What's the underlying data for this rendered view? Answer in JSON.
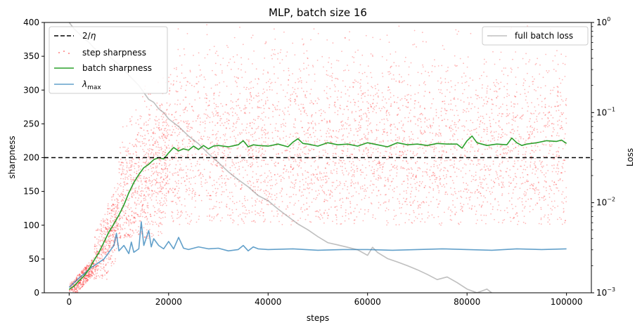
{
  "chart_data": {
    "type": "line+scatter",
    "title": "MLP, batch size 16",
    "xlabel": "steps",
    "ylabel": "sharpness",
    "y2label": "Loss",
    "xlim": [
      -5000,
      105000
    ],
    "ylim": [
      0,
      400
    ],
    "y2lim": [
      0.001,
      1
    ],
    "y2scale": "log",
    "xticks": [
      0,
      20000,
      40000,
      60000,
      80000,
      100000
    ],
    "xtick_labels": [
      "0",
      "20000",
      "40000",
      "60000",
      "80000",
      "100000"
    ],
    "yticks": [
      0,
      50,
      100,
      150,
      200,
      250,
      300,
      350,
      400
    ],
    "ytick_labels": [
      "0",
      "50",
      "100",
      "150",
      "200",
      "250",
      "300",
      "350",
      "400"
    ],
    "y2ticks": [
      0.001,
      0.01,
      0.1,
      1
    ],
    "y2tick_labels": [
      "10",
      "10",
      "10",
      "10"
    ],
    "y2tick_exponents": [
      "−3",
      "−2",
      "−1",
      "0"
    ],
    "threshold": {
      "name": "2/η",
      "value": 200,
      "color": "#000000"
    },
    "legend_left": {
      "placement": "top-left",
      "entries": [
        {
          "label_base": "2/",
          "label_sym": "η",
          "style": "dashed-line",
          "color": "#000000"
        },
        {
          "label": "step sharpness",
          "style": "dots",
          "color": "#ff0000"
        },
        {
          "label": "batch sharpness",
          "style": "line",
          "color": "#2ca02c"
        },
        {
          "label_base": "λ",
          "label_sub": "max",
          "style": "line",
          "color": "#1f77b4"
        }
      ]
    },
    "legend_right": {
      "placement": "top-right",
      "entries": [
        {
          "label": "full batch loss",
          "style": "line",
          "color": "#808080"
        }
      ]
    },
    "series": [
      {
        "name": "batch sharpness",
        "axis": "left",
        "color": "#2ca02c",
        "x": [
          0,
          1000,
          2000,
          3000,
          4000,
          5000,
          6000,
          7000,
          8000,
          9000,
          10000,
          11000,
          12000,
          13000,
          14000,
          15000,
          16000,
          17000,
          18000,
          19000,
          20000,
          21000,
          22000,
          23000,
          24000,
          25000,
          26000,
          27000,
          28000,
          29000,
          30000,
          32000,
          34000,
          35000,
          36000,
          37000,
          38000,
          40000,
          42000,
          44000,
          45000,
          46000,
          47000,
          48000,
          50000,
          52000,
          54000,
          56000,
          58000,
          60000,
          62000,
          64000,
          66000,
          68000,
          70000,
          72000,
          74000,
          76000,
          78000,
          79000,
          80000,
          81000,
          82000,
          84000,
          86000,
          88000,
          89000,
          90000,
          91000,
          92000,
          94000,
          96000,
          98000,
          99000,
          100000
        ],
        "y": [
          5,
          10,
          18,
          25,
          35,
          48,
          60,
          75,
          90,
          102,
          115,
          130,
          148,
          163,
          175,
          185,
          190,
          197,
          200,
          198,
          207,
          215,
          210,
          213,
          211,
          217,
          212,
          218,
          213,
          217,
          218,
          216,
          219,
          225,
          216,
          219,
          218,
          217,
          220,
          216,
          223,
          228,
          221,
          220,
          217,
          222,
          219,
          220,
          217,
          222,
          219,
          216,
          222,
          219,
          220,
          218,
          221,
          220,
          220,
          214,
          225,
          232,
          222,
          218,
          220,
          219,
          229,
          222,
          218,
          220,
          222,
          225,
          224,
          226,
          221
        ]
      },
      {
        "name": "λmax",
        "axis": "left",
        "color": "#1f77b4",
        "x": [
          0,
          1000,
          2000,
          3000,
          4000,
          5000,
          6000,
          7000,
          8000,
          9000,
          9500,
          10000,
          11000,
          12000,
          12500,
          13000,
          14000,
          14500,
          15000,
          16000,
          16500,
          17000,
          18000,
          19000,
          20000,
          21000,
          22000,
          23000,
          24000,
          26000,
          28000,
          30000,
          32000,
          34000,
          35000,
          36000,
          37000,
          38000,
          40000,
          45000,
          50000,
          55000,
          60000,
          65000,
          70000,
          75000,
          80000,
          85000,
          90000,
          95000,
          100000
        ],
        "y": [
          8,
          15,
          22,
          28,
          35,
          40,
          45,
          50,
          60,
          70,
          88,
          62,
          70,
          58,
          75,
          60,
          65,
          105,
          70,
          92,
          68,
          80,
          70,
          65,
          76,
          65,
          82,
          66,
          64,
          68,
          65,
          66,
          62,
          64,
          70,
          62,
          68,
          65,
          64,
          65,
          63,
          64,
          64,
          63,
          64,
          65,
          64,
          63,
          65,
          64,
          65
        ]
      },
      {
        "name": "full batch loss",
        "axis": "right",
        "color": "#808080",
        "x": [
          0,
          1000,
          2000,
          3000,
          4000,
          5000,
          6000,
          8000,
          10000,
          12000,
          14000,
          16000,
          17000,
          18000,
          19000,
          20000,
          22000,
          24000,
          26000,
          28000,
          30000,
          32000,
          34000,
          36000,
          38000,
          40000,
          42000,
          44000,
          46000,
          48000,
          50000,
          52000,
          54000,
          56000,
          58000,
          60000,
          61000,
          62000,
          64000,
          66000,
          68000,
          70000,
          72000,
          74000,
          76000,
          78000,
          80000,
          82000,
          84000,
          86000,
          87000
        ],
        "y": [
          1.0,
          0.85,
          0.75,
          0.66,
          0.6,
          0.52,
          0.48,
          0.42,
          0.34,
          0.26,
          0.2,
          0.14,
          0.13,
          0.11,
          0.1,
          0.085,
          0.07,
          0.055,
          0.045,
          0.035,
          0.028,
          0.022,
          0.018,
          0.015,
          0.012,
          0.0105,
          0.0085,
          0.007,
          0.0058,
          0.005,
          0.0042,
          0.0036,
          0.0034,
          0.0032,
          0.003,
          0.0026,
          0.0032,
          0.0028,
          0.0024,
          0.0022,
          0.002,
          0.0018,
          0.0016,
          0.0014,
          0.0015,
          0.0013,
          0.0011,
          0.001,
          0.0011,
          0.0009,
          0.0008
        ]
      },
      {
        "name": "step sharpness",
        "axis": "left",
        "color": "#ff0000",
        "style": "scatter",
        "note": "Dense cloud of faint red points; envelope by x-range",
        "envelope": [
          {
            "x_range": [
              0,
              5000
            ],
            "y_range": [
              0,
              55
            ]
          },
          {
            "x_range": [
              5000,
              10000
            ],
            "y_range": [
              20,
              180
            ]
          },
          {
            "x_range": [
              10000,
              20000
            ],
            "y_range": [
              80,
              320
            ]
          },
          {
            "x_range": [
              20000,
              100000
            ],
            "y_range": [
              100,
              400
            ]
          }
        ]
      }
    ]
  }
}
